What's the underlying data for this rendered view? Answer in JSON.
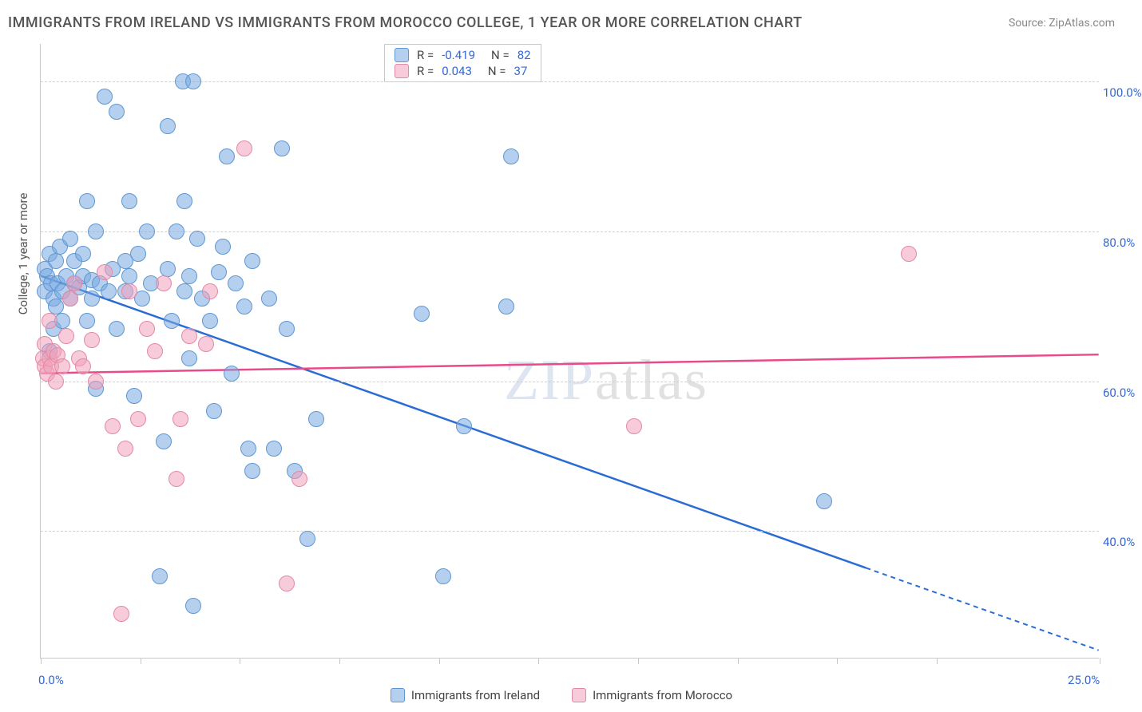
{
  "title": "IMMIGRANTS FROM IRELAND VS IMMIGRANTS FROM MOROCCO COLLEGE, 1 YEAR OR MORE CORRELATION CHART",
  "source": "Source: ZipAtlas.com",
  "y_axis_title": "College, 1 year or more",
  "watermark_a": "ZIP",
  "watermark_b": "atlas",
  "chart": {
    "type": "scatter",
    "background_color": "#ffffff",
    "grid_color": "#d0d0d0",
    "axis_color": "#c8c8c8",
    "xlim": [
      0,
      25
    ],
    "ylim": [
      23,
      105
    ],
    "xtick_positions": [
      0,
      2.35,
      4.7,
      7.05,
      9.4,
      11.75,
      14.1,
      16.45,
      18.8,
      21.15,
      25
    ],
    "xtick_labels": {
      "0": "0.0%",
      "25": "25.0%"
    },
    "ygrid_positions": [
      40,
      60,
      80,
      100
    ],
    "ytick_labels": {
      "40": "40.0%",
      "60": "60.0%",
      "80": "80.0%",
      "100": "100.0%"
    },
    "series": [
      {
        "key": "ireland",
        "label": "Immigrants from Ireland",
        "fill": "rgba(120,170,225,0.55)",
        "stroke": "#6097d1",
        "trend_color": "#2b6cd4",
        "marker_radius": 10,
        "R": "-0.419",
        "N": "82",
        "trend": {
          "x1": 0,
          "y1": 74,
          "x2": 19.5,
          "y2": 35,
          "x2_dash": 25,
          "y2_dash": 24
        },
        "points": [
          [
            0.1,
            75
          ],
          [
            0.1,
            72
          ],
          [
            0.15,
            74
          ],
          [
            0.2,
            64
          ],
          [
            0.2,
            77
          ],
          [
            0.25,
            73
          ],
          [
            0.3,
            71
          ],
          [
            0.3,
            67
          ],
          [
            0.35,
            76
          ],
          [
            0.35,
            70
          ],
          [
            0.4,
            73
          ],
          [
            0.45,
            78
          ],
          [
            0.5,
            72
          ],
          [
            0.5,
            68
          ],
          [
            0.6,
            74
          ],
          [
            0.7,
            79
          ],
          [
            0.7,
            71
          ],
          [
            0.8,
            73
          ],
          [
            0.8,
            76
          ],
          [
            0.9,
            72.5
          ],
          [
            1.0,
            74
          ],
          [
            1.0,
            77
          ],
          [
            1.1,
            84
          ],
          [
            1.1,
            68
          ],
          [
            1.2,
            71
          ],
          [
            1.2,
            73.5
          ],
          [
            1.3,
            80
          ],
          [
            1.3,
            59
          ],
          [
            1.4,
            73
          ],
          [
            1.5,
            98
          ],
          [
            1.6,
            72
          ],
          [
            1.7,
            75
          ],
          [
            1.8,
            67
          ],
          [
            1.8,
            96
          ],
          [
            2.0,
            76
          ],
          [
            2.0,
            72
          ],
          [
            2.1,
            84
          ],
          [
            2.1,
            74
          ],
          [
            2.2,
            58
          ],
          [
            2.3,
            77
          ],
          [
            2.4,
            71
          ],
          [
            2.5,
            80
          ],
          [
            2.6,
            73
          ],
          [
            2.8,
            34
          ],
          [
            2.9,
            52
          ],
          [
            3.0,
            94
          ],
          [
            3.0,
            75
          ],
          [
            3.1,
            68
          ],
          [
            3.2,
            80
          ],
          [
            3.35,
            100
          ],
          [
            3.4,
            72
          ],
          [
            3.4,
            84
          ],
          [
            3.5,
            63
          ],
          [
            3.5,
            74
          ],
          [
            3.6,
            100
          ],
          [
            3.6,
            30
          ],
          [
            3.7,
            79
          ],
          [
            3.8,
            71
          ],
          [
            4.0,
            68
          ],
          [
            4.1,
            56
          ],
          [
            4.2,
            74.5
          ],
          [
            4.3,
            78
          ],
          [
            4.4,
            90
          ],
          [
            4.5,
            61
          ],
          [
            4.6,
            73
          ],
          [
            4.8,
            70
          ],
          [
            4.9,
            51
          ],
          [
            5.0,
            48
          ],
          [
            5.0,
            76
          ],
          [
            5.4,
            71
          ],
          [
            5.5,
            51
          ],
          [
            5.7,
            91
          ],
          [
            5.8,
            67
          ],
          [
            6.0,
            48
          ],
          [
            6.3,
            39
          ],
          [
            6.5,
            55
          ],
          [
            9.0,
            69
          ],
          [
            9.5,
            34
          ],
          [
            10.0,
            54
          ],
          [
            11.0,
            70
          ],
          [
            11.1,
            90
          ],
          [
            18.5,
            44
          ]
        ]
      },
      {
        "key": "morocco",
        "label": "Immigrants from Morocco",
        "fill": "rgba(240,160,185,0.55)",
        "stroke": "#e28aa5",
        "trend_color": "#e84a8a",
        "marker_radius": 10,
        "R": "0.043",
        "N": "37",
        "trend": {
          "x1": 0,
          "y1": 61,
          "x2": 25,
          "y2": 63.5
        },
        "points": [
          [
            0.05,
            63
          ],
          [
            0.1,
            62
          ],
          [
            0.1,
            65
          ],
          [
            0.15,
            61
          ],
          [
            0.2,
            63
          ],
          [
            0.2,
            68
          ],
          [
            0.25,
            62
          ],
          [
            0.3,
            64
          ],
          [
            0.35,
            60
          ],
          [
            0.4,
            63.5
          ],
          [
            0.5,
            62
          ],
          [
            0.6,
            66
          ],
          [
            0.7,
            71
          ],
          [
            0.8,
            73
          ],
          [
            0.9,
            63
          ],
          [
            1.0,
            62
          ],
          [
            1.2,
            65.5
          ],
          [
            1.3,
            60
          ],
          [
            1.5,
            74.5
          ],
          [
            1.7,
            54
          ],
          [
            1.9,
            29
          ],
          [
            2.0,
            51
          ],
          [
            2.1,
            72
          ],
          [
            2.3,
            55
          ],
          [
            2.5,
            67
          ],
          [
            2.7,
            64
          ],
          [
            2.9,
            73
          ],
          [
            3.2,
            47
          ],
          [
            3.3,
            55
          ],
          [
            3.5,
            66
          ],
          [
            3.9,
            65
          ],
          [
            4.0,
            72
          ],
          [
            4.8,
            91
          ],
          [
            5.8,
            33
          ],
          [
            6.1,
            47
          ],
          [
            14.0,
            54
          ],
          [
            20.5,
            77
          ]
        ]
      }
    ]
  },
  "stats_box": {
    "rows": [
      "ireland",
      "morocco"
    ]
  },
  "colors": {
    "tick_label": "#3568d4",
    "text": "#555555"
  }
}
